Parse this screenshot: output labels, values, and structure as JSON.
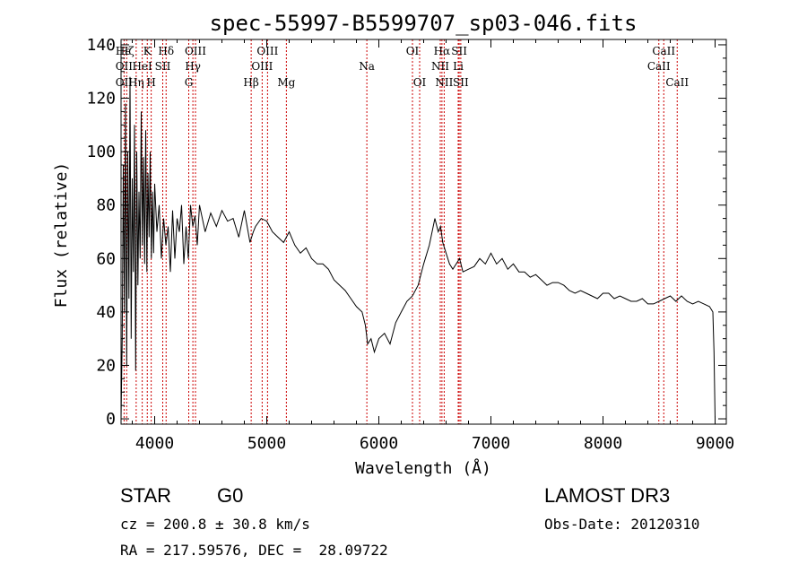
{
  "chart_data": {
    "type": "line",
    "title": "spec-55997-B5599707_sp03-046.fits",
    "xlabel": "Wavelength (Å)",
    "ylabel": "Flux (relative)",
    "xlim": [
      3700,
      9100
    ],
    "ylim": [
      -2,
      142
    ],
    "xticks": [
      4000,
      5000,
      6000,
      7000,
      8000,
      9000
    ],
    "yticks": [
      0,
      20,
      40,
      60,
      80,
      100,
      120,
      140
    ],
    "series": [
      {
        "name": "flux",
        "x": [
          3700,
          3710,
          3720,
          3730,
          3740,
          3750,
          3760,
          3770,
          3780,
          3790,
          3800,
          3810,
          3820,
          3830,
          3840,
          3850,
          3860,
          3870,
          3880,
          3890,
          3900,
          3910,
          3920,
          3930,
          3940,
          3950,
          3960,
          3970,
          3980,
          3990,
          4000,
          4020,
          4040,
          4060,
          4080,
          4100,
          4120,
          4140,
          4160,
          4180,
          4200,
          4220,
          4240,
          4260,
          4280,
          4300,
          4320,
          4340,
          4360,
          4380,
          4400,
          4450,
          4500,
          4550,
          4600,
          4650,
          4700,
          4750,
          4800,
          4850,
          4880,
          4900,
          4950,
          5000,
          5050,
          5100,
          5150,
          5200,
          5250,
          5300,
          5350,
          5400,
          5450,
          5500,
          5550,
          5600,
          5650,
          5700,
          5750,
          5800,
          5850,
          5880,
          5900,
          5930,
          5960,
          6000,
          6050,
          6100,
          6150,
          6200,
          6250,
          6300,
          6350,
          6400,
          6450,
          6500,
          6530,
          6550,
          6570,
          6600,
          6630,
          6660,
          6690,
          6720,
          6750,
          6800,
          6850,
          6900,
          6950,
          7000,
          7050,
          7100,
          7150,
          7200,
          7250,
          7300,
          7350,
          7400,
          7450,
          7500,
          7550,
          7600,
          7650,
          7700,
          7750,
          7800,
          7850,
          7900,
          7950,
          8000,
          8050,
          8100,
          8150,
          8200,
          8250,
          8300,
          8350,
          8400,
          8450,
          8500,
          8550,
          8600,
          8650,
          8700,
          8750,
          8800,
          8850,
          8900,
          8950,
          8980,
          8990,
          9000
        ],
        "y": [
          0,
          30,
          95,
          40,
          118,
          20,
          100,
          45,
          128,
          30,
          90,
          55,
          110,
          18,
          100,
          50,
          85,
          60,
          115,
          65,
          98,
          58,
          108,
          55,
          92,
          68,
          100,
          60,
          85,
          62,
          88,
          70,
          80,
          60,
          75,
          65,
          72,
          55,
          78,
          60,
          75,
          70,
          80,
          58,
          72,
          60,
          80,
          72,
          76,
          65,
          80,
          70,
          77,
          72,
          78,
          74,
          75,
          68,
          78,
          66,
          70,
          72,
          75,
          74,
          70,
          68,
          66,
          70,
          65,
          62,
          64,
          60,
          58,
          58,
          56,
          52,
          50,
          48,
          45,
          42,
          40,
          35,
          28,
          30,
          25,
          30,
          32,
          28,
          36,
          40,
          44,
          46,
          50,
          58,
          65,
          75,
          70,
          72,
          66,
          62,
          58,
          56,
          58,
          60,
          55,
          56,
          57,
          60,
          58,
          62,
          58,
          60,
          56,
          58,
          55,
          55,
          53,
          54,
          52,
          50,
          51,
          51,
          50,
          48,
          47,
          48,
          47,
          46,
          45,
          47,
          47,
          45,
          46,
          45,
          44,
          44,
          45,
          43,
          43,
          44,
          45,
          46,
          44,
          46,
          44,
          43,
          44,
          43,
          42,
          40,
          25,
          0
        ]
      }
    ],
    "line_labels": [
      {
        "name": "Hϵ",
        "wl": 3720,
        "row": 1
      },
      {
        "name": "OII",
        "wl": 3727,
        "row": 3
      },
      {
        "name": "OII",
        "wl": 3727,
        "row": 2
      },
      {
        "name": "Hζ",
        "wl": 3750,
        "row": 1
      },
      {
        "name": "Hη",
        "wl": 3835,
        "row": 3
      },
      {
        "name": "HeI",
        "wl": 3889,
        "row": 2
      },
      {
        "name": "K",
        "wl": 3934,
        "row": 1
      },
      {
        "name": "H",
        "wl": 3969,
        "row": 3
      },
      {
        "name": "SII",
        "wl": 4072,
        "row": 2
      },
      {
        "name": "Hδ",
        "wl": 4102,
        "row": 1
      },
      {
        "name": "OIII",
        "wl": 4364,
        "row": 1
      },
      {
        "name": "Hγ",
        "wl": 4341,
        "row": 2
      },
      {
        "name": "G",
        "wl": 4304,
        "row": 3
      },
      {
        "name": "Hβ",
        "wl": 4861,
        "row": 3
      },
      {
        "name": "OIII",
        "wl": 5007,
        "row": 1
      },
      {
        "name": "OIII",
        "wl": 4959,
        "row": 2
      },
      {
        "name": "Mg",
        "wl": 5175,
        "row": 3
      },
      {
        "name": "Na",
        "wl": 5893,
        "row": 2
      },
      {
        "name": "OI",
        "wl": 6300,
        "row": 1
      },
      {
        "name": "OI",
        "wl": 6364,
        "row": 3
      },
      {
        "name": "Hα",
        "wl": 6563,
        "row": 1
      },
      {
        "name": "NII",
        "wl": 6548,
        "row": 2
      },
      {
        "name": "NII",
        "wl": 6583,
        "row": 3
      },
      {
        "name": "SII",
        "wl": 6717,
        "row": 1
      },
      {
        "name": "Li",
        "wl": 6708,
        "row": 2
      },
      {
        "name": "SII",
        "wl": 6731,
        "row": 3
      },
      {
        "name": "CaII",
        "wl": 8542,
        "row": 1
      },
      {
        "name": "CaII",
        "wl": 8498,
        "row": 2
      },
      {
        "name": "CaII",
        "wl": 8662,
        "row": 3
      }
    ],
    "line_markers": [
      3727,
      3750,
      3835,
      3889,
      3934,
      3969,
      4072,
      4102,
      4304,
      4341,
      4364,
      4861,
      4959,
      5007,
      5175,
      5893,
      6300,
      6364,
      6548,
      6563,
      6583,
      6708,
      6717,
      6731,
      8498,
      8542,
      8662
    ]
  },
  "info": {
    "object_type": "STAR",
    "subclass": "G0",
    "survey": "LAMOST DR3",
    "cz": "cz = 200.8 ± 30.8 km/s",
    "obs_date": "Obs-Date: 20120310",
    "coords": "RA = 217.59576, DEC =  28.09722"
  },
  "colors": {
    "line_marker": "#cc0000",
    "spectrum": "#000000"
  }
}
